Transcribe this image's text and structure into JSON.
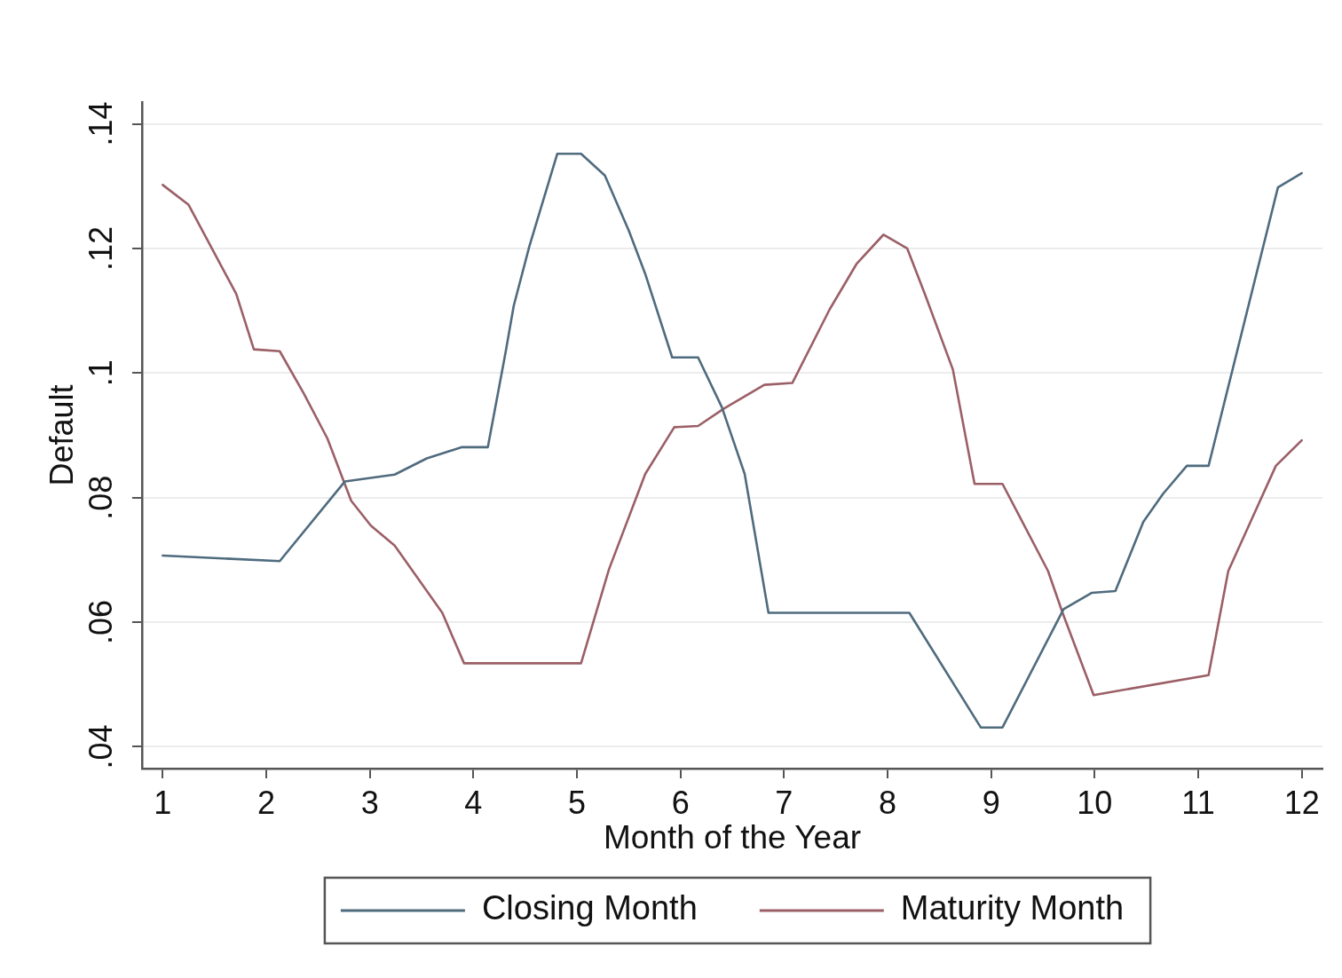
{
  "chart_data": {
    "type": "line",
    "xlabel": "Month of the Year",
    "ylabel": "Default",
    "xlim": [
      0.8,
      12.2
    ],
    "xticks": [
      1,
      2,
      3,
      4,
      5,
      6,
      7,
      8,
      9,
      10,
      11,
      12
    ],
    "ylim": [
      0.0365,
      0.1435
    ],
    "yticks": [
      {
        "value": 0.04,
        "label": ".04"
      },
      {
        "value": 0.06,
        "label": ".06"
      },
      {
        "value": 0.08,
        "label": ".08"
      },
      {
        "value": 0.1,
        "label": ".1"
      },
      {
        "value": 0.12,
        "label": ".12"
      },
      {
        "value": 0.14,
        "label": ".14"
      }
    ],
    "grid": "y",
    "legend": "bottom",
    "series": [
      {
        "name": "Closing Month",
        "color": "#4f6b7e",
        "x": [
          1.0,
          2.13,
          2.76,
          3.24,
          3.55,
          3.89,
          4.14,
          4.31,
          4.39,
          4.54,
          4.81,
          5.04,
          5.27,
          5.5,
          5.66,
          5.92,
          6.17,
          6.4,
          6.62,
          6.85,
          8.21,
          8.9,
          9.11,
          9.7,
          9.97,
          10.2,
          10.47,
          10.66,
          10.89,
          11.1,
          11.77,
          12.0
        ],
        "values": [
          0.0707,
          0.0698,
          0.0826,
          0.0837,
          0.0863,
          0.0881,
          0.0881,
          0.1032,
          0.1108,
          0.1203,
          0.1352,
          0.1352,
          0.1317,
          0.1229,
          0.1159,
          0.1025,
          0.1025,
          0.0945,
          0.0838,
          0.0615,
          0.0615,
          0.0431,
          0.0431,
          0.0621,
          0.0647,
          0.065,
          0.0761,
          0.0806,
          0.0851,
          0.0851,
          0.1298,
          0.1321
        ]
      },
      {
        "name": "Maturity Month",
        "color": "#9b5f66",
        "x": [
          1.0,
          1.25,
          1.71,
          1.88,
          2.13,
          2.36,
          2.59,
          2.82,
          3.01,
          3.24,
          3.7,
          3.91,
          5.04,
          5.31,
          5.66,
          5.94,
          6.17,
          6.42,
          6.81,
          7.08,
          7.44,
          7.7,
          7.96,
          8.19,
          8.36,
          8.63,
          8.84,
          9.11,
          9.28,
          9.55,
          9.69,
          9.99,
          11.1,
          11.29,
          11.54,
          11.75,
          12.0
        ],
        "values": [
          0.1302,
          0.127,
          0.1127,
          0.1038,
          0.1035,
          0.0968,
          0.0895,
          0.0795,
          0.0755,
          0.0723,
          0.0615,
          0.0534,
          0.0534,
          0.0685,
          0.0838,
          0.0913,
          0.0915,
          0.0943,
          0.0981,
          0.0984,
          0.1102,
          0.1175,
          0.1222,
          0.12,
          0.1127,
          0.1006,
          0.0822,
          0.0822,
          0.0768,
          0.0682,
          0.0615,
          0.0483,
          0.0515,
          0.0682,
          0.0774,
          0.0851,
          0.0892
        ]
      }
    ]
  }
}
